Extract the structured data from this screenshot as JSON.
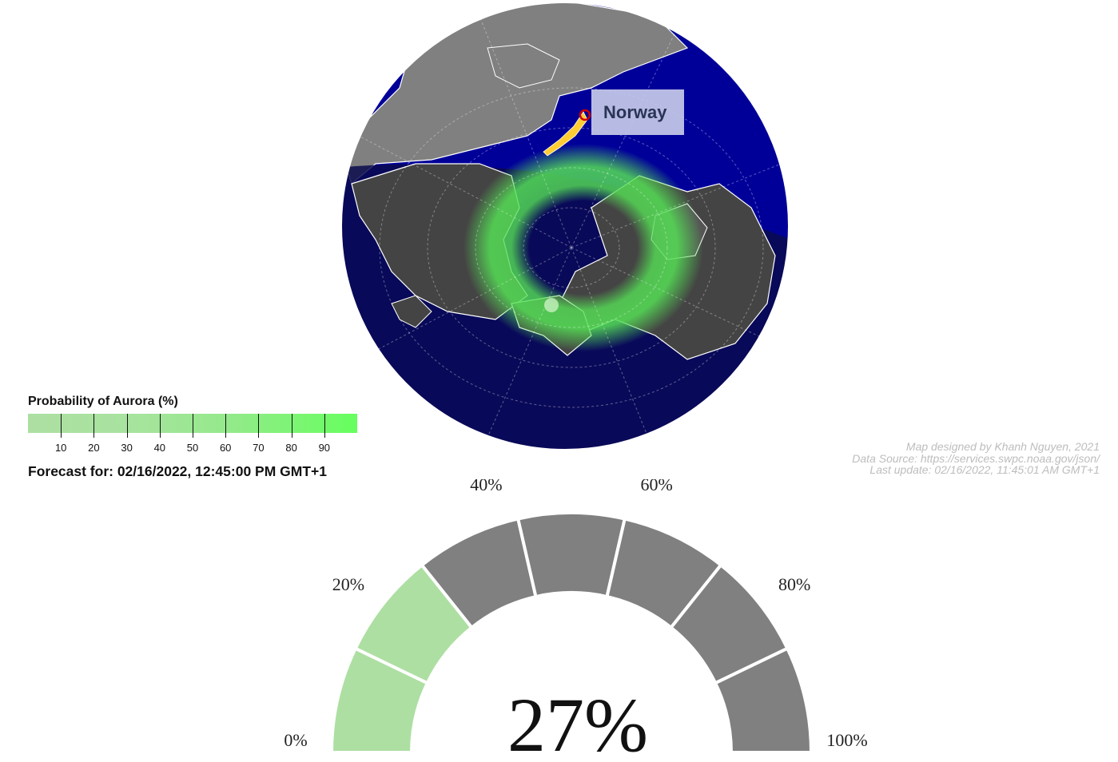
{
  "map": {
    "location_label": "Norway",
    "colors": {
      "ocean": "#000099",
      "ocean_night": "#0a0a4d",
      "land_day": "#808080",
      "land_night": "#444444",
      "border": "#ffffff",
      "aurora": "#55e055",
      "marker_ring": "#cc0000",
      "location_highlight": "#ffcc33"
    }
  },
  "legend": {
    "title": "Probability of Aurora (%)",
    "ticks": [
      "10",
      "20",
      "30",
      "40",
      "50",
      "60",
      "70",
      "80",
      "90"
    ],
    "forecast": "Forecast for: 02/16/2022, 12:45:00 PM GMT+1"
  },
  "credits": {
    "line1": "Map designed by Khanh Nguyen, 2021",
    "line2": "Data Source: https://services.swpc.noaa.gov/json/",
    "line3": "Last update: 02/16/2022, 11:45:01 AM GMT+1"
  },
  "gauge": {
    "value": 27,
    "value_label": "27%",
    "segments": 7,
    "filled_color": "#addfa2",
    "empty_color": "#808080",
    "tick_labels": [
      "0%",
      "20%",
      "40%",
      "60%",
      "80%",
      "100%"
    ]
  }
}
